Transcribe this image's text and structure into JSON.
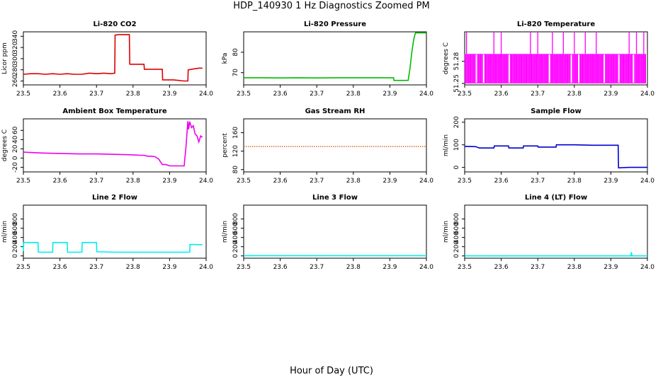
{
  "title": "HDP_140930  1 Hz Diagnostics Zoomed PM",
  "xlabel": "Hour of Day (UTC)",
  "chart_data": [
    {
      "type": "line",
      "title": "Li-820 CO2",
      "ylabel": "Licor ppm",
      "color": "#dd0000",
      "xlim": [
        23.5,
        24.0
      ],
      "ylim": [
        253,
        348
      ],
      "xticks": [
        "23.5",
        "23.6",
        "23.7",
        "23.8",
        "23.9",
        "24.0"
      ],
      "yticks": [
        "260",
        "280",
        "300",
        "320",
        "340"
      ],
      "x": [
        23.5,
        23.52,
        23.54,
        23.56,
        23.58,
        23.6,
        23.62,
        23.64,
        23.66,
        23.68,
        23.7,
        23.72,
        23.74,
        23.75,
        23.751,
        23.76,
        23.79,
        23.791,
        23.82,
        23.83,
        23.831,
        23.87,
        23.88,
        23.881,
        23.91,
        23.94,
        23.95,
        23.951,
        23.98,
        23.99
      ],
      "y": [
        272,
        273,
        273,
        272,
        273,
        272,
        273,
        272,
        272,
        274,
        273,
        274,
        273,
        274,
        342,
        343,
        343,
        290,
        290,
        290,
        281,
        281,
        281,
        262,
        262,
        260,
        260,
        280,
        283,
        283
      ]
    },
    {
      "type": "line",
      "title": "Li-820 Pressure",
      "ylabel": "kPa",
      "color": "#00bb00",
      "xlim": [
        23.5,
        24.0
      ],
      "ylim": [
        64,
        90
      ],
      "xticks": [
        "23.5",
        "23.6",
        "23.7",
        "23.8",
        "23.9",
        "24.0"
      ],
      "yticks": [
        "70",
        "80"
      ],
      "x": [
        23.5,
        23.55,
        23.6,
        23.65,
        23.7,
        23.75,
        23.8,
        23.85,
        23.9,
        23.91,
        23.911,
        23.95,
        23.955,
        23.96,
        23.965,
        23.97,
        24.0
      ],
      "y": [
        67.5,
        67.5,
        67.4,
        67.5,
        67.4,
        67.5,
        67.5,
        67.5,
        67.5,
        67.5,
        66.2,
        66.2,
        72,
        80,
        86,
        89.5,
        89.5
      ]
    },
    {
      "type": "line",
      "title": "Li-820 Temperature",
      "ylabel": "degrees C",
      "color": "#ff00ff",
      "xlim": [
        23.5,
        24.0
      ],
      "ylim": [
        51.248,
        51.32
      ],
      "xticks": [
        "23.5",
        "23.6",
        "23.7",
        "23.8",
        "23.9",
        "24.0"
      ],
      "yticks": [
        "51.25",
        "51.28"
      ],
      "band_low": 51.25,
      "band_high": 51.29,
      "spike_high": 51.32,
      "spike_x": [
        23.505,
        23.58,
        23.6,
        23.68,
        23.7,
        23.74,
        23.77,
        23.8,
        23.83,
        23.86,
        23.95,
        23.97,
        23.99
      ],
      "gap_x": [
        23.53,
        23.55,
        23.62,
        23.73,
        23.79,
        23.81,
        23.88,
        23.92,
        23.96
      ]
    },
    {
      "type": "line",
      "title": "Ambient Box Temperature",
      "ylabel": "degrees C",
      "color": "#ee00ee",
      "xlim": [
        23.5,
        24.0
      ],
      "ylim": [
        -30,
        85
      ],
      "xticks": [
        "23.5",
        "23.6",
        "23.7",
        "23.8",
        "23.9",
        "24.0"
      ],
      "yticks": [
        "-20",
        "0",
        "20",
        "40",
        "60"
      ],
      "x": [
        23.5,
        23.52,
        23.55,
        23.6,
        23.65,
        23.7,
        23.75,
        23.8,
        23.82,
        23.83,
        23.84,
        23.85,
        23.86,
        23.87,
        23.875,
        23.88,
        23.89,
        23.9,
        23.94,
        23.945,
        23.95,
        23.952,
        23.955,
        23.96,
        23.965,
        23.97,
        23.975,
        23.98,
        23.985,
        23.99
      ],
      "y": [
        13,
        12,
        11,
        10,
        9,
        9,
        8,
        7,
        6,
        6,
        4,
        4,
        3,
        -2,
        -8,
        -14,
        -14,
        -17,
        -17,
        25,
        80,
        62,
        79,
        66,
        70,
        52,
        48,
        35,
        48,
        45
      ]
    },
    {
      "type": "line",
      "title": "Gas Stream RH",
      "ylabel": "percent",
      "color": "#cc5500",
      "style": "dotted",
      "xlim": [
        23.5,
        24.0
      ],
      "ylim": [
        75,
        190
      ],
      "xticks": [
        "23.5",
        "23.6",
        "23.7",
        "23.8",
        "23.9",
        "24.0"
      ],
      "yticks": [
        "80",
        "120",
        "160"
      ],
      "x": [
        23.5,
        24.0
      ],
      "y": [
        130,
        130
      ]
    },
    {
      "type": "line",
      "title": "Sample Flow",
      "ylabel": "ml/min",
      "color": "#0000cc",
      "xlim": [
        23.5,
        24.0
      ],
      "ylim": [
        -20,
        215
      ],
      "xticks": [
        "23.5",
        "23.6",
        "23.7",
        "23.8",
        "23.9",
        "24.0"
      ],
      "yticks": [
        "0",
        "100",
        "200"
      ],
      "x": [
        23.5,
        23.53,
        23.54,
        23.58,
        23.581,
        23.62,
        23.621,
        23.66,
        23.661,
        23.7,
        23.701,
        23.75,
        23.751,
        23.8,
        23.85,
        23.9,
        23.92,
        23.921,
        23.95,
        24.0
      ],
      "y": [
        93,
        92,
        86,
        86,
        95,
        95,
        86,
        86,
        95,
        95,
        90,
        90,
        100,
        100,
        98,
        98,
        98,
        -2,
        0,
        0
      ]
    },
    {
      "type": "line",
      "title": "Line 2 Flow",
      "ylabel": "ml/min",
      "color": "#00eeee",
      "xlim": [
        23.5,
        24.0
      ],
      "ylim": [
        -50,
        1100
      ],
      "xticks": [
        "23.5",
        "23.6",
        "23.7",
        "23.8",
        "23.9",
        "24.0"
      ],
      "yticks": [
        "0",
        "200",
        "400",
        "600",
        "800"
      ],
      "x": [
        23.5,
        23.501,
        23.54,
        23.541,
        23.58,
        23.581,
        23.62,
        23.621,
        23.66,
        23.661,
        23.7,
        23.701,
        23.75,
        23.9,
        23.955,
        23.956,
        23.99
      ],
      "y": [
        100,
        290,
        290,
        80,
        80,
        290,
        290,
        80,
        80,
        290,
        290,
        90,
        80,
        80,
        80,
        250,
        240
      ]
    },
    {
      "type": "line",
      "title": "Line 3 Flow",
      "ylabel": "ml/min",
      "color": "#00eeee",
      "xlim": [
        23.5,
        24.0
      ],
      "ylim": [
        -50,
        1100
      ],
      "xticks": [
        "23.5",
        "23.6",
        "23.7",
        "23.8",
        "23.9",
        "24.0"
      ],
      "yticks": [
        "0",
        "200",
        "400",
        "600",
        "800"
      ],
      "x": [
        23.5,
        24.0
      ],
      "y": [
        5,
        5
      ]
    },
    {
      "type": "line",
      "title": "Line 4 (LT) Flow",
      "ylabel": "ml/min",
      "color": "#00eeee",
      "xlim": [
        23.5,
        24.0
      ],
      "ylim": [
        -50,
        1100
      ],
      "xticks": [
        "23.5",
        "23.6",
        "23.7",
        "23.8",
        "23.9",
        "24.0"
      ],
      "yticks": [
        "0",
        "200",
        "400",
        "600",
        "800"
      ],
      "x": [
        23.5,
        23.955,
        23.956,
        23.958,
        23.96,
        24.0
      ],
      "y": [
        0,
        0,
        80,
        0,
        0,
        0
      ]
    }
  ]
}
